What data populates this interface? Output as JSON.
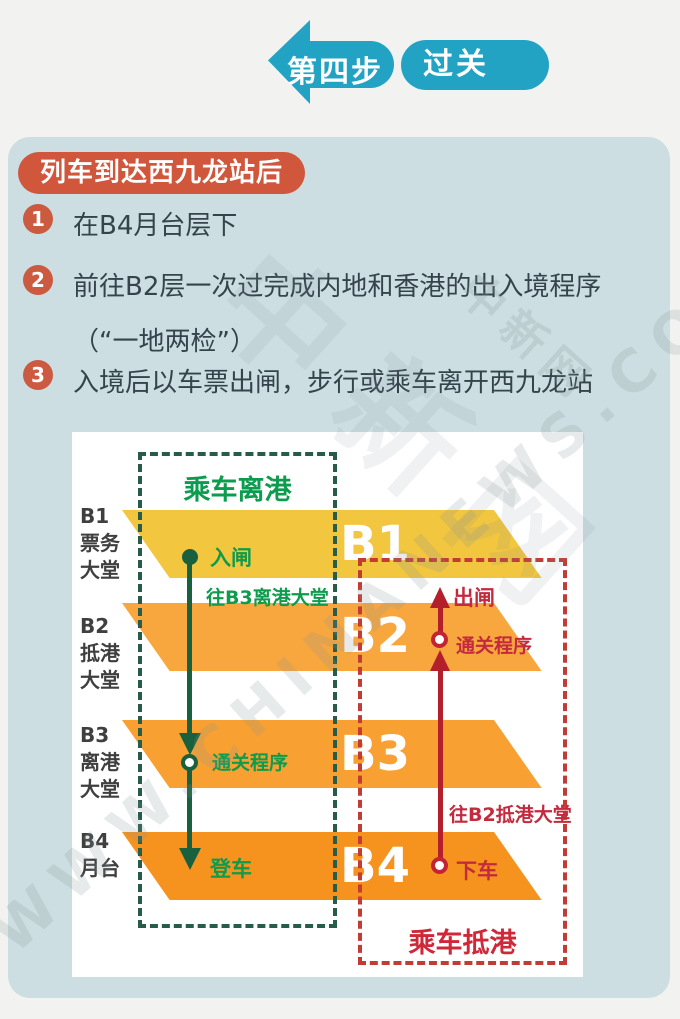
{
  "header": {
    "accent_color": "#23a3c4",
    "step_label": "第四步",
    "step_title": "过关"
  },
  "card": {
    "background": "#ccdee2",
    "badge": {
      "text": "列车到达西九龙站后",
      "color": "#d0563c"
    },
    "steps": [
      {
        "num": "1",
        "lines": [
          "在B4月台层下"
        ]
      },
      {
        "num": "2",
        "lines": [
          "前往B2层一次过完成内地和香港的出入境程序",
          "（“一地两检”）"
        ]
      },
      {
        "num": "3",
        "lines": [
          "入境后以车票出闸，步行或乘车离开西九龙站"
        ]
      }
    ]
  },
  "diagram": {
    "floors": [
      {
        "big_label": "B1",
        "side_label": [
          "B1",
          "票务",
          "大堂"
        ],
        "color": "#f2c63f"
      },
      {
        "big_label": "B2",
        "side_label": [
          "B2",
          "抵港",
          "大堂"
        ],
        "color": "#f8a73e"
      },
      {
        "big_label": "B3",
        "side_label": [
          "B3",
          "离港",
          "大堂"
        ],
        "color": "#f8a032"
      },
      {
        "big_label": "B4",
        "side_label": [
          "B4",
          "月台"
        ],
        "color": "#f6921e"
      }
    ],
    "departure_flow": {
      "title": "乘车离港",
      "text_color": "#0e9b4b",
      "line_color": "#19603e",
      "labels": {
        "enter_gate": "入闸",
        "to_b3": "往B3离港大堂",
        "customs": "通关程序",
        "board": "登车"
      }
    },
    "arrival_flow": {
      "title": "乘车抵港",
      "text_color": "#c42a3d",
      "line_color": "#b3202c",
      "labels": {
        "exit_gate": "出闸",
        "customs": "通关程序",
        "to_b2": "往B2抵港大堂",
        "alight": "下车"
      }
    }
  },
  "watermark": {
    "cn": "中新网",
    "en": "WWW.CHINANEWS.COM"
  }
}
